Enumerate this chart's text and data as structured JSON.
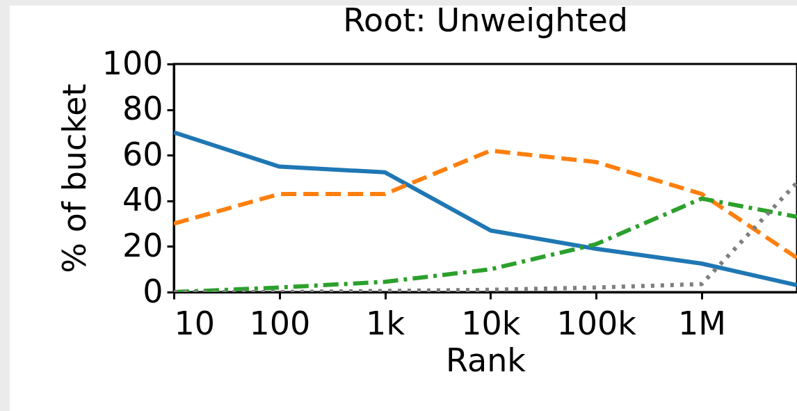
{
  "chart_data": {
    "type": "line",
    "title": "Root: Unweighted",
    "xlabel": "Rank",
    "ylabel": "% of bucket",
    "x": [
      10,
      100,
      1000,
      10000,
      100000,
      1000000,
      8000000
    ],
    "series": [
      {
        "color": "#1f77b4",
        "line_style": "solid",
        "values": [
          70,
          55,
          52.5,
          27,
          19,
          12.5,
          3
        ]
      },
      {
        "color": "#ff7f0e",
        "line_style": "dashed",
        "values": [
          30,
          43,
          43,
          62,
          57,
          43,
          15
        ]
      },
      {
        "color": "#2ca02c",
        "line_style": "dashdot",
        "values": [
          0,
          2,
          4.5,
          10,
          21,
          41,
          33
        ]
      },
      {
        "color": "#7f7f7f",
        "line_style": "dotted",
        "values": [
          0,
          0,
          0.5,
          1,
          2,
          3.5,
          48
        ]
      }
    ],
    "log": "x",
    "xlim": [
      10,
      8000000
    ],
    "xticks": [
      {
        "value": 10,
        "label": "10"
      },
      {
        "value": 100,
        "label": "100"
      },
      {
        "value": 1000,
        "label": "1k"
      },
      {
        "value": 10000,
        "label": "10k"
      },
      {
        "value": 100000,
        "label": "100k"
      },
      {
        "value": 1000000,
        "label": "1M"
      }
    ],
    "ylim": [
      0,
      100
    ],
    "yticks": [
      0,
      20,
      40,
      60,
      80,
      100
    ],
    "grid": false,
    "marker": "none"
  }
}
